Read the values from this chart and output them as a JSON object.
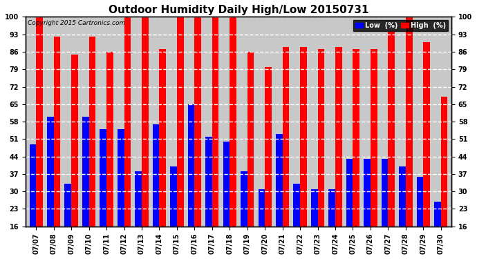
{
  "title": "Outdoor Humidity Daily High/Low 20150731",
  "copyright": "Copyright 2015 Cartronics.com",
  "dates": [
    "07/07",
    "07/08",
    "07/09",
    "07/10",
    "07/11",
    "07/12",
    "07/13",
    "07/14",
    "07/15",
    "07/16",
    "07/17",
    "07/18",
    "07/19",
    "07/20",
    "07/21",
    "07/22",
    "07/23",
    "07/24",
    "07/25",
    "07/26",
    "07/27",
    "07/28",
    "07/29",
    "07/30"
  ],
  "high": [
    100,
    92,
    85,
    92,
    86,
    100,
    100,
    87,
    100,
    100,
    100,
    100,
    86,
    80,
    88,
    88,
    87,
    88,
    87,
    87,
    94,
    100,
    90,
    68
  ],
  "low": [
    49,
    60,
    33,
    60,
    55,
    55,
    38,
    57,
    40,
    65,
    52,
    50,
    38,
    31,
    53,
    33,
    31,
    31,
    43,
    43,
    43,
    40,
    36,
    26
  ],
  "y_ticks": [
    16,
    23,
    30,
    37,
    44,
    51,
    58,
    65,
    72,
    79,
    86,
    93,
    100
  ],
  "ylim": [
    16,
    100
  ],
  "bar_color_high": "#ff0000",
  "bar_color_low": "#0000ff",
  "bg_color": "#ffffff",
  "plot_bg_color": "#c8c8c8",
  "title_fontsize": 11,
  "legend_high_label": "High  (%)",
  "legend_low_label": "Low  (%)"
}
